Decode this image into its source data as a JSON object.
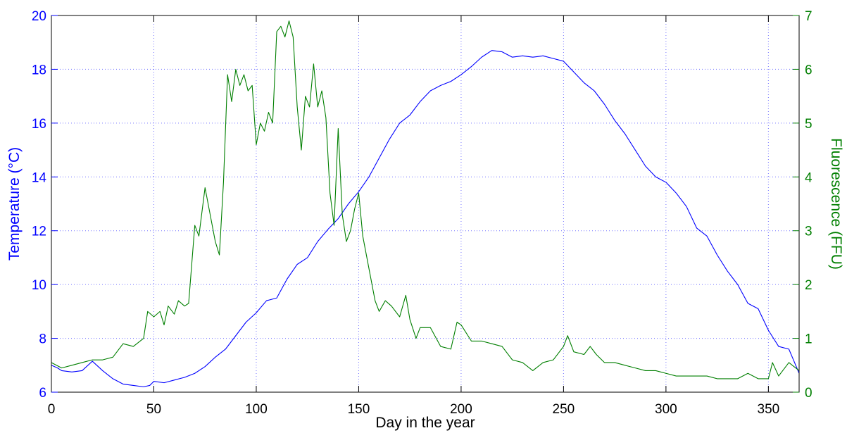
{
  "chart_data": {
    "type": "line",
    "title": "",
    "xlabel": "Day in the year",
    "ylabel_left": "Temperature (°C)",
    "ylabel_right": "Fluorescence (FFU)",
    "xlim": [
      0,
      365
    ],
    "ylim_left": [
      6,
      20
    ],
    "ylim_right": [
      0,
      7
    ],
    "x_ticks": [
      "0",
      "50",
      "100",
      "150",
      "200",
      "250",
      "300",
      "350"
    ],
    "y_left_ticks": [
      "6",
      "8",
      "10",
      "12",
      "14",
      "16",
      "18",
      "20"
    ],
    "y_right_ticks": [
      "0",
      "1",
      "2",
      "3",
      "4",
      "5",
      "6",
      "7"
    ],
    "grid": true,
    "legend": "none",
    "colors": {
      "temperature": "#0000ff",
      "fluorescence": "#007f00",
      "left_axis_text": "#0000ff",
      "right_axis_text": "#007f00",
      "grid": "#0000ff",
      "axis": "#000000"
    },
    "series": [
      {
        "axis": "left",
        "color": "#0000ff",
        "x": [
          0,
          3,
          5,
          10,
          15,
          20,
          25,
          30,
          35,
          40,
          45,
          48,
          50,
          55,
          60,
          65,
          70,
          75,
          80,
          85,
          90,
          95,
          100,
          105,
          110,
          115,
          120,
          125,
          130,
          135,
          140,
          145,
          150,
          155,
          160,
          165,
          170,
          175,
          180,
          185,
          190,
          195,
          200,
          205,
          210,
          215,
          220,
          225,
          230,
          235,
          240,
          245,
          250,
          255,
          260,
          265,
          270,
          275,
          280,
          285,
          290,
          295,
          300,
          305,
          310,
          315,
          320,
          325,
          330,
          335,
          340,
          345,
          350,
          355,
          360,
          365
        ],
        "y": [
          7.0,
          6.9,
          6.8,
          6.75,
          6.8,
          7.15,
          6.8,
          6.5,
          6.3,
          6.25,
          6.2,
          6.25,
          6.4,
          6.35,
          6.45,
          6.55,
          6.7,
          6.95,
          7.3,
          7.6,
          8.1,
          8.6,
          8.95,
          9.4,
          9.5,
          10.2,
          10.75,
          11.0,
          11.6,
          12.05,
          12.45,
          13.0,
          13.45,
          14.0,
          14.7,
          15.4,
          16.0,
          16.3,
          16.8,
          17.2,
          17.4,
          17.55,
          17.8,
          18.1,
          18.45,
          18.7,
          18.65,
          18.45,
          18.5,
          18.45,
          18.5,
          18.4,
          18.3,
          17.9,
          17.5,
          17.2,
          16.7,
          16.1,
          15.6,
          15.0,
          14.4,
          14.0,
          13.8,
          13.4,
          12.9,
          12.1,
          11.8,
          11.1,
          10.5,
          10.0,
          9.3,
          9.1,
          8.3,
          7.7,
          7.6,
          6.7
        ]
      },
      {
        "axis": "right",
        "color": "#007f00",
        "x": [
          0,
          5,
          10,
          15,
          20,
          25,
          30,
          35,
          40,
          45,
          47,
          50,
          53,
          55,
          57,
          60,
          62,
          65,
          67,
          70,
          72,
          75,
          78,
          80,
          82,
          84,
          86,
          88,
          90,
          92,
          94,
          96,
          98,
          100,
          102,
          104,
          106,
          108,
          110,
          112,
          114,
          116,
          118,
          120,
          122,
          124,
          126,
          128,
          130,
          132,
          134,
          136,
          138,
          140,
          142,
          144,
          146,
          148,
          150,
          152,
          155,
          158,
          160,
          163,
          166,
          170,
          173,
          175,
          178,
          180,
          185,
          190,
          195,
          198,
          200,
          205,
          210,
          215,
          220,
          225,
          230,
          235,
          240,
          245,
          250,
          252,
          255,
          260,
          263,
          266,
          270,
          275,
          280,
          285,
          290,
          295,
          300,
          305,
          310,
          315,
          320,
          325,
          330,
          335,
          340,
          345,
          350,
          352,
          355,
          360,
          365
        ],
        "y": [
          0.55,
          0.45,
          0.5,
          0.55,
          0.6,
          0.6,
          0.65,
          0.9,
          0.85,
          1.0,
          1.5,
          1.4,
          1.5,
          1.25,
          1.6,
          1.45,
          1.7,
          1.6,
          1.65,
          3.1,
          2.9,
          3.8,
          3.2,
          2.8,
          2.55,
          3.9,
          5.9,
          5.4,
          6.0,
          5.7,
          5.9,
          5.6,
          5.7,
          4.6,
          5.0,
          4.85,
          5.2,
          5.0,
          6.7,
          6.8,
          6.6,
          6.9,
          6.6,
          5.3,
          4.5,
          5.5,
          5.3,
          6.1,
          5.3,
          5.6,
          5.1,
          3.7,
          3.1,
          4.9,
          3.3,
          2.8,
          3.0,
          3.4,
          3.7,
          2.9,
          2.3,
          1.7,
          1.5,
          1.7,
          1.6,
          1.4,
          1.8,
          1.35,
          1.0,
          1.2,
          1.2,
          0.85,
          0.8,
          1.3,
          1.25,
          0.95,
          0.95,
          0.9,
          0.85,
          0.6,
          0.55,
          0.4,
          0.55,
          0.6,
          0.85,
          1.05,
          0.75,
          0.7,
          0.85,
          0.7,
          0.55,
          0.55,
          0.5,
          0.45,
          0.4,
          0.4,
          0.35,
          0.3,
          0.3,
          0.3,
          0.3,
          0.25,
          0.25,
          0.25,
          0.35,
          0.25,
          0.25,
          0.55,
          0.3,
          0.55,
          0.4
        ]
      }
    ]
  }
}
